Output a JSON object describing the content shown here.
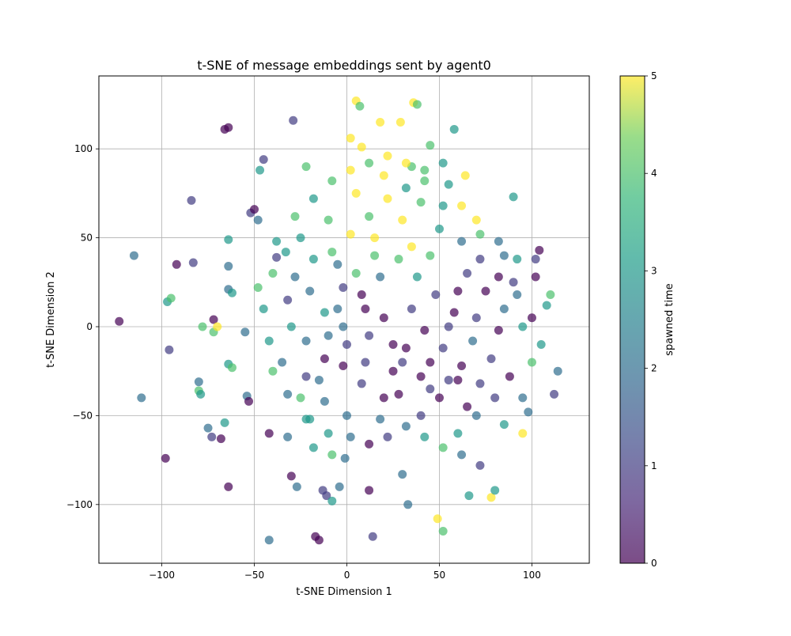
{
  "chart_data": {
    "type": "scatter",
    "title": "t-SNE of message embeddings sent by agent0",
    "xlabel": "t-SNE Dimension 1",
    "ylabel": "t-SNE Dimension 2",
    "xlim": [
      -134,
      131
    ],
    "ylim": [
      -133,
      141
    ],
    "xticks": [
      -100,
      -50,
      0,
      50,
      100
    ],
    "yticks": [
      -100,
      -50,
      0,
      50,
      100
    ],
    "grid": true,
    "colorbar": {
      "label": "spawned time",
      "range": [
        0,
        5
      ],
      "ticks": [
        0,
        1,
        2,
        3,
        4,
        5
      ],
      "colormap": "viridis",
      "alpha": 0.7
    },
    "points": [
      [
        -123,
        3,
        0
      ],
      [
        -115,
        40,
        2
      ],
      [
        -111,
        -40,
        2
      ],
      [
        -98,
        -74,
        0
      ],
      [
        -96,
        -13,
        1
      ],
      [
        -97,
        14,
        3
      ],
      [
        -95,
        16,
        4
      ],
      [
        -92,
        35,
        0
      ],
      [
        -84,
        71,
        1
      ],
      [
        -83,
        36,
        1
      ],
      [
        -80,
        -31,
        2
      ],
      [
        -80,
        -36,
        4
      ],
      [
        -79,
        -38,
        3
      ],
      [
        -78,
        0,
        4
      ],
      [
        -75,
        -57,
        2
      ],
      [
        -73,
        -62,
        1
      ],
      [
        -72,
        -3,
        4
      ],
      [
        -72,
        4,
        0
      ],
      [
        -70,
        0,
        5
      ],
      [
        -68,
        -63,
        0
      ],
      [
        -66,
        -54,
        3
      ],
      [
        -66,
        111,
        0
      ],
      [
        -64,
        112,
        0
      ],
      [
        -64,
        49,
        3
      ],
      [
        -64,
        34,
        2
      ],
      [
        -64,
        21,
        2
      ],
      [
        -62,
        19,
        3
      ],
      [
        -64,
        -21,
        3
      ],
      [
        -62,
        -23,
        4
      ],
      [
        -64,
        -90,
        0
      ],
      [
        -55,
        -3,
        2
      ],
      [
        -54,
        -39,
        2
      ],
      [
        -53,
        -42,
        0
      ],
      [
        -52,
        64,
        1
      ],
      [
        -50,
        66,
        0
      ],
      [
        -48,
        60,
        2
      ],
      [
        -47,
        88,
        3
      ],
      [
        -45,
        94,
        1
      ],
      [
        -42,
        -60,
        0
      ],
      [
        -42,
        -120,
        2
      ],
      [
        -40,
        -25,
        4
      ],
      [
        -38,
        39,
        1
      ],
      [
        -33,
        42,
        3
      ],
      [
        -29,
        116,
        1
      ],
      [
        -30,
        -84,
        0
      ],
      [
        -27,
        -90,
        2
      ],
      [
        -22,
        90,
        4
      ],
      [
        -20,
        -52,
        3
      ],
      [
        -17,
        -118,
        0
      ],
      [
        -15,
        -120,
        0
      ],
      [
        -13,
        -92,
        1
      ],
      [
        -11,
        -95,
        1
      ],
      [
        -8,
        -98,
        3
      ],
      [
        -4,
        -90,
        2
      ],
      [
        -1,
        -74,
        2
      ],
      [
        2,
        106,
        5
      ],
      [
        5,
        127,
        5
      ],
      [
        7,
        124,
        4
      ],
      [
        8,
        101,
        5
      ],
      [
        12,
        -92,
        0
      ],
      [
        14,
        -118,
        1
      ],
      [
        18,
        115,
        5
      ],
      [
        29,
        115,
        5
      ],
      [
        30,
        -83,
        2
      ],
      [
        33,
        -100,
        2
      ],
      [
        36,
        126,
        5
      ],
      [
        38,
        125,
        4
      ],
      [
        45,
        102,
        4
      ],
      [
        49,
        -108,
        5
      ],
      [
        52,
        -115,
        4
      ],
      [
        58,
        111,
        3
      ],
      [
        64,
        85,
        5
      ],
      [
        66,
        -95,
        3
      ],
      [
        78,
        -96,
        5
      ],
      [
        80,
        -92,
        3
      ],
      [
        90,
        73,
        3
      ],
      [
        95,
        -60,
        5
      ],
      [
        104,
        43,
        0
      ],
      [
        110,
        18,
        4
      ],
      [
        114,
        -25,
        2
      ],
      [
        20,
        5,
        0
      ],
      [
        25,
        -10,
        0
      ],
      [
        35,
        10,
        1
      ],
      [
        45,
        -20,
        0
      ],
      [
        55,
        0,
        1
      ],
      [
        60,
        -30,
        0
      ],
      [
        10,
        -20,
        1
      ],
      [
        -5,
        10,
        2
      ],
      [
        -20,
        20,
        2
      ],
      [
        -30,
        0,
        3
      ],
      [
        -15,
        -30,
        2
      ],
      [
        5,
        30,
        4
      ],
      [
        15,
        50,
        5
      ],
      [
        30,
        60,
        5
      ],
      [
        40,
        70,
        4
      ],
      [
        50,
        55,
        3
      ],
      [
        65,
        30,
        1
      ],
      [
        75,
        20,
        0
      ],
      [
        85,
        10,
        2
      ],
      [
        95,
        0,
        3
      ],
      [
        100,
        -20,
        4
      ],
      [
        80,
        -40,
        1
      ],
      [
        70,
        -50,
        2
      ],
      [
        60,
        -60,
        3
      ],
      [
        40,
        -50,
        1
      ],
      [
        20,
        -40,
        0
      ],
      [
        0,
        -50,
        2
      ],
      [
        -10,
        -60,
        3
      ],
      [
        -25,
        -40,
        4
      ],
      [
        -35,
        -20,
        2
      ],
      [
        -45,
        10,
        3
      ],
      [
        -40,
        30,
        4
      ],
      [
        -25,
        50,
        3
      ],
      [
        -10,
        60,
        4
      ],
      [
        5,
        75,
        5
      ],
      [
        20,
        85,
        5
      ],
      [
        35,
        90,
        4
      ],
      [
        55,
        80,
        3
      ],
      [
        70,
        60,
        5
      ],
      [
        85,
        40,
        2
      ],
      [
        90,
        25,
        1
      ],
      [
        100,
        5,
        0
      ],
      [
        105,
        -10,
        3
      ],
      [
        95,
        -40,
        2
      ],
      [
        85,
        -55,
        3
      ],
      [
        65,
        -45,
        0
      ],
      [
        45,
        -35,
        1
      ],
      [
        25,
        -25,
        0
      ],
      [
        12,
        -5,
        1
      ],
      [
        -2,
        0,
        2
      ],
      [
        -12,
        8,
        3
      ],
      [
        -22,
        -8,
        2
      ],
      [
        -32,
        15,
        1
      ],
      [
        -28,
        28,
        2
      ],
      [
        -18,
        38,
        3
      ],
      [
        -8,
        42,
        4
      ],
      [
        2,
        52,
        5
      ],
      [
        12,
        62,
        4
      ],
      [
        22,
        72,
        5
      ],
      [
        32,
        78,
        3
      ],
      [
        42,
        82,
        4
      ],
      [
        52,
        68,
        3
      ],
      [
        62,
        48,
        2
      ],
      [
        72,
        38,
        1
      ],
      [
        82,
        28,
        0
      ],
      [
        92,
        18,
        2
      ],
      [
        102,
        28,
        0
      ],
      [
        108,
        12,
        3
      ],
      [
        112,
        -38,
        1
      ],
      [
        98,
        -48,
        2
      ],
      [
        88,
        -28,
        0
      ],
      [
        78,
        -18,
        1
      ],
      [
        68,
        -8,
        2
      ],
      [
        58,
        8,
        0
      ],
      [
        48,
        18,
        1
      ],
      [
        38,
        28,
        3
      ],
      [
        28,
        38,
        4
      ],
      [
        18,
        28,
        2
      ],
      [
        8,
        18,
        0
      ],
      [
        -2,
        22,
        1
      ],
      [
        -12,
        -18,
        0
      ],
      [
        -22,
        -28,
        1
      ],
      [
        -32,
        -38,
        2
      ],
      [
        -42,
        -8,
        3
      ],
      [
        -48,
        22,
        4
      ],
      [
        -38,
        48,
        3
      ],
      [
        -28,
        62,
        4
      ],
      [
        -18,
        72,
        3
      ],
      [
        -8,
        82,
        4
      ],
      [
        2,
        88,
        5
      ],
      [
        12,
        92,
        4
      ],
      [
        22,
        96,
        5
      ],
      [
        32,
        92,
        5
      ],
      [
        42,
        88,
        4
      ],
      [
        52,
        92,
        3
      ],
      [
        62,
        68,
        5
      ],
      [
        72,
        52,
        4
      ],
      [
        82,
        48,
        2
      ],
      [
        92,
        38,
        3
      ],
      [
        102,
        38,
        1
      ],
      [
        32,
        -12,
        0
      ],
      [
        42,
        -2,
        0
      ],
      [
        52,
        -12,
        1
      ],
      [
        62,
        -22,
        0
      ],
      [
        72,
        -32,
        1
      ],
      [
        82,
        -2,
        0
      ],
      [
        28,
        -38,
        0
      ],
      [
        18,
        -52,
        2
      ],
      [
        8,
        -32,
        1
      ],
      [
        -2,
        -22,
        0
      ],
      [
        -12,
        -42,
        2
      ],
      [
        -22,
        -52,
        3
      ],
      [
        -32,
        -62,
        2
      ],
      [
        -18,
        -68,
        3
      ],
      [
        -8,
        -72,
        4
      ],
      [
        2,
        -62,
        2
      ],
      [
        12,
        -66,
        0
      ],
      [
        22,
        -62,
        1
      ],
      [
        32,
        -56,
        2
      ],
      [
        42,
        -62,
        3
      ],
      [
        52,
        -68,
        4
      ],
      [
        62,
        -72,
        2
      ],
      [
        72,
        -78,
        1
      ],
      [
        50,
        -40,
        0
      ],
      [
        55,
        -30,
        1
      ],
      [
        40,
        -28,
        0
      ],
      [
        30,
        -20,
        1
      ],
      [
        10,
        10,
        0
      ],
      [
        0,
        -10,
        1
      ],
      [
        -10,
        -5,
        2
      ],
      [
        60,
        20,
        0
      ],
      [
        70,
        5,
        1
      ],
      [
        -5,
        35,
        2
      ],
      [
        15,
        40,
        4
      ],
      [
        35,
        45,
        5
      ],
      [
        45,
        40,
        4
      ]
    ]
  }
}
